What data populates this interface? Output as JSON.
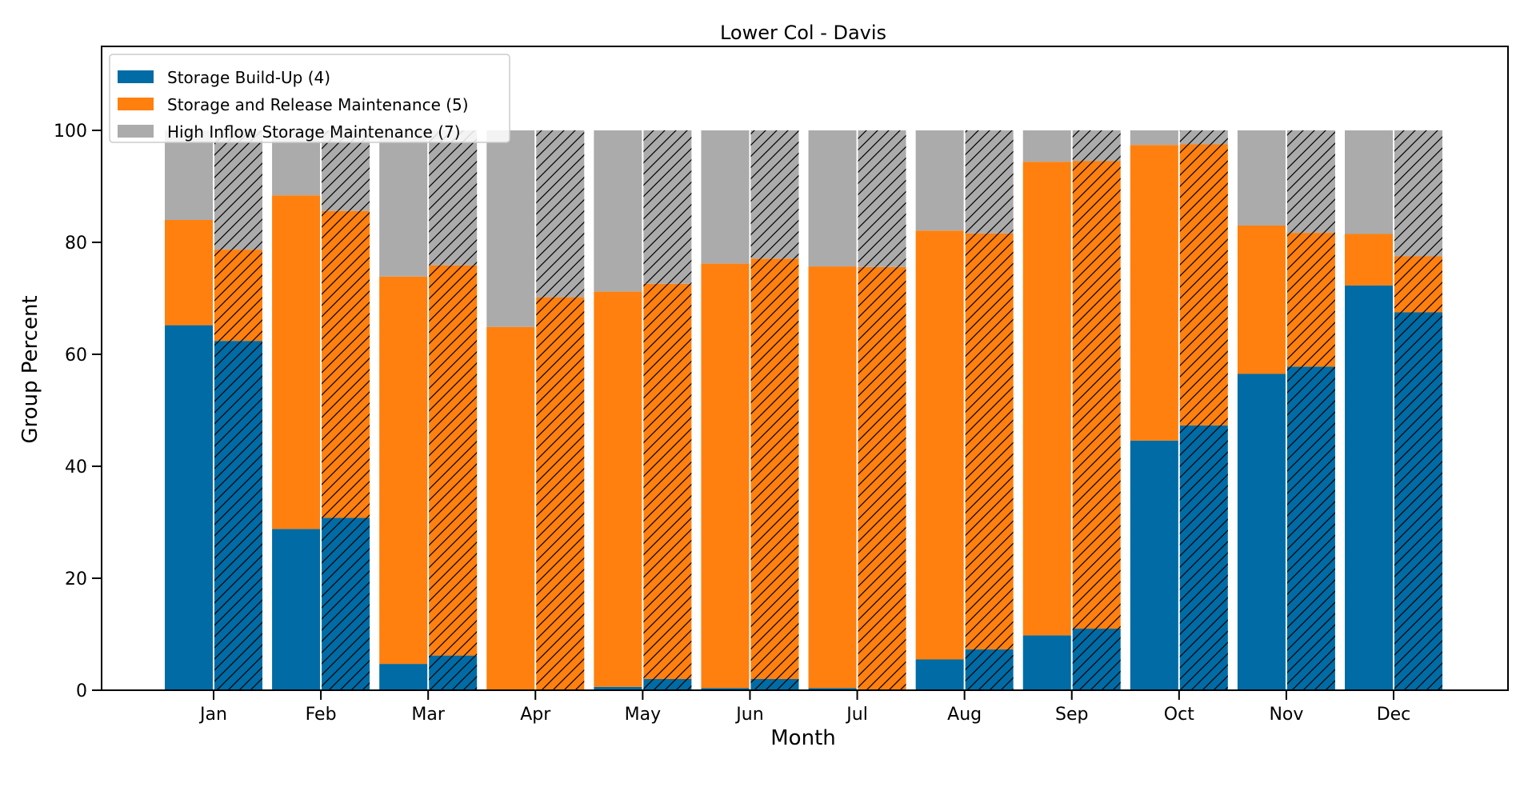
{
  "chart_data": {
    "type": "bar",
    "stacked": true,
    "title": "Lower Col - Davis",
    "xlabel": "Month",
    "ylabel": "Group Percent",
    "ylim": [
      0,
      115
    ],
    "yticks": [
      0,
      20,
      40,
      60,
      80,
      100
    ],
    "categories": [
      "Jan",
      "Feb",
      "Mar",
      "Apr",
      "May",
      "Jun",
      "Jul",
      "Aug",
      "Sep",
      "Oct",
      "Nov",
      "Dec"
    ],
    "bar_variants": [
      {
        "pattern": "solid"
      },
      {
        "pattern": "hatched"
      }
    ],
    "series": [
      {
        "name": "Storage Build-Up (4)",
        "color": "#006ba4",
        "values_solid": [
          65.2,
          28.8,
          4.7,
          0.0,
          0.6,
          0.4,
          0.4,
          5.5,
          9.8,
          44.6,
          56.5,
          72.3
        ],
        "values_hatched": [
          62.4,
          30.8,
          6.2,
          0.0,
          2.0,
          2.0,
          0.0,
          7.3,
          11.0,
          47.3,
          57.8,
          67.5
        ]
      },
      {
        "name": "Storage and Release Maintenance (5)",
        "color": "#ff800e",
        "values_solid": [
          18.8,
          59.6,
          69.2,
          64.9,
          70.6,
          75.8,
          75.3,
          76.6,
          84.6,
          52.8,
          26.5,
          9.2
        ],
        "values_hatched": [
          16.3,
          54.8,
          69.7,
          70.2,
          70.6,
          75.1,
          75.6,
          74.3,
          83.5,
          50.2,
          23.9,
          10.0
        ]
      },
      {
        "name": "High Inflow Storage Maintenance (7)",
        "color": "#ababab",
        "values_solid": [
          16.0,
          11.6,
          26.1,
          35.1,
          28.8,
          23.8,
          24.3,
          17.9,
          5.6,
          2.6,
          17.0,
          18.5
        ],
        "values_hatched": [
          21.3,
          14.4,
          24.1,
          29.8,
          27.4,
          22.9,
          24.4,
          18.4,
          5.5,
          2.5,
          18.3,
          22.5
        ]
      }
    ],
    "legend": {
      "position": "top-left",
      "items": [
        "Storage Build-Up (4)",
        "Storage and Release Maintenance (5)",
        "High Inflow Storage Maintenance (7)"
      ]
    },
    "grid": false
  }
}
